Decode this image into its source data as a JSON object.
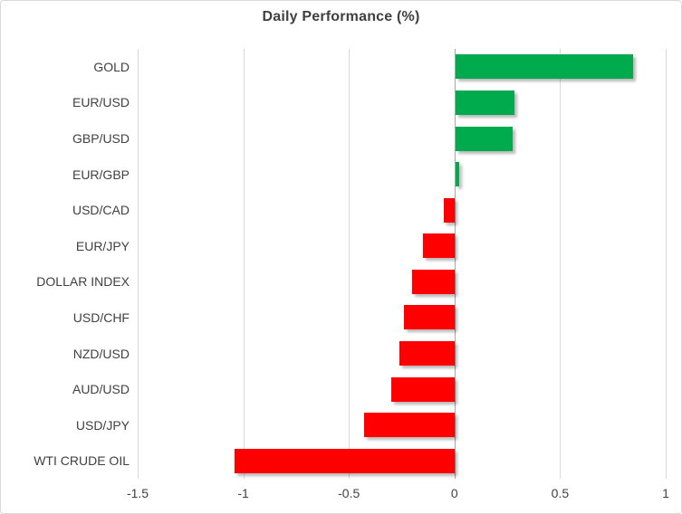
{
  "chart_data": {
    "type": "bar",
    "orientation": "horizontal",
    "title": "Daily Performance (%)",
    "categories": [
      "GOLD",
      "EUR/USD",
      "GBP/USD",
      "EUR/GBP",
      "USD/CAD",
      "EUR/JPY",
      "DOLLAR INDEX",
      "USD/CHF",
      "NZD/USD",
      "AUD/USD",
      "USD/JPY",
      "WTI CRUDE OIL"
    ],
    "values": [
      0.84,
      0.28,
      0.27,
      0.02,
      -0.05,
      -0.15,
      -0.2,
      -0.24,
      -0.26,
      -0.3,
      -0.43,
      -1.04
    ],
    "xlim": [
      -1.5,
      1.0
    ],
    "xticks": [
      -1.5,
      -1,
      -0.5,
      0,
      0.5,
      1
    ],
    "xtick_labels": [
      "-1.5",
      "-1",
      "-0.5",
      "0",
      "0.5",
      "1"
    ],
    "grid": true,
    "legend": "none",
    "colors": {
      "positive": "#00ab4e",
      "negative": "#ff0000",
      "gridline": "#d9d9d9",
      "zero_line": "#a6a6a6",
      "text": "#404040",
      "border": "#d9d9d9",
      "background": "#ffffff"
    }
  }
}
